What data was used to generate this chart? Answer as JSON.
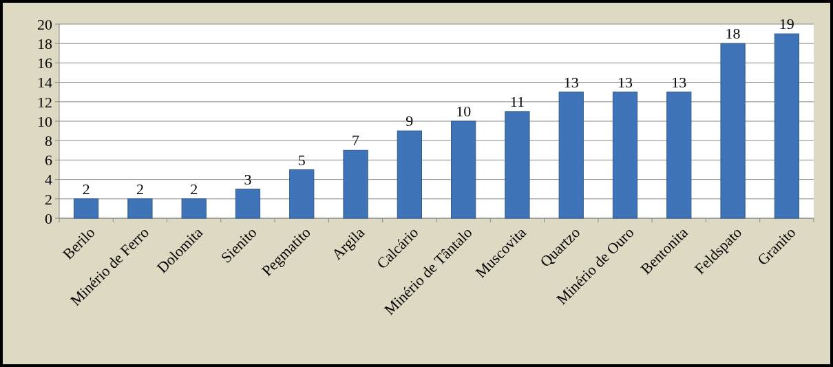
{
  "chart_data": {
    "type": "bar",
    "categories": [
      "Berilo",
      "Minério de Ferro",
      "Dolomita",
      "Sienito",
      "Pegmatito",
      "Argila",
      "Calcário",
      "Minério de Tântalo",
      "Muscovita",
      "Quartzo",
      "Minério de Ouro",
      "Bentonita",
      "Feldspato",
      "Granito"
    ],
    "values": [
      2,
      2,
      2,
      3,
      5,
      7,
      9,
      10,
      11,
      13,
      13,
      13,
      18,
      19
    ],
    "color": "#3f74b8",
    "ylim": [
      0,
      20
    ],
    "yticks": [
      0,
      2,
      4,
      6,
      8,
      10,
      12,
      14,
      16,
      18,
      20
    ],
    "grid": "y",
    "data_labels": true
  }
}
